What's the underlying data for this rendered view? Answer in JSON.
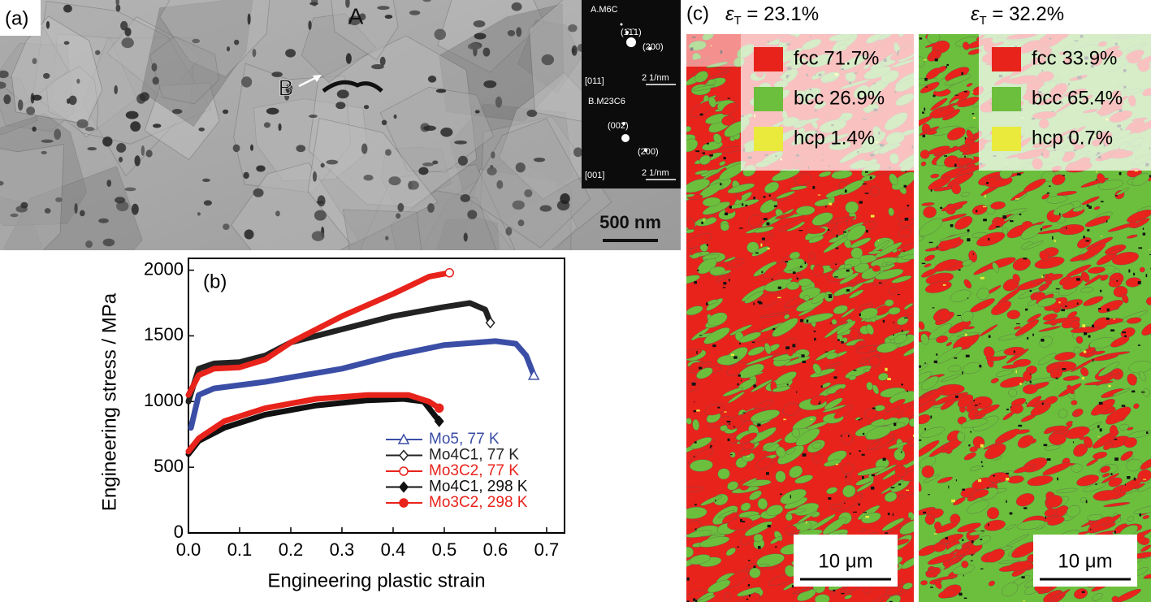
{
  "panel_a": {
    "label": "(a)",
    "feature_labels": [
      "A",
      "B"
    ],
    "scale_bar": "500 nm",
    "inset": [
      "A.M6C",
      "(1̄1̄1)",
      "(200)",
      "[011]",
      "2 1/nm",
      "B.M23C6",
      "(002)",
      "(2̄00)",
      "[001]",
      "2 1/nm"
    ]
  },
  "chart_data": {
    "type": "line",
    "panel_label": "(b)",
    "x_label": "Engineering plastic strain",
    "y_label": "Engineering stress / MPa",
    "xlim": [
      0,
      0.735
    ],
    "ylim": [
      0,
      2090
    ],
    "xticks": [
      {
        "value": 0,
        "label": "0.0"
      },
      0.1,
      0.2,
      0.3,
      0.4,
      0.5,
      0.6,
      0.7
    ],
    "yticks": [
      0,
      500,
      1000,
      1500,
      2000
    ],
    "series": [
      {
        "name": "Mo5, 77 K",
        "color": "#3b4ea6",
        "marker": "triangle-open",
        "x": [
          0.005,
          0.02,
          0.05,
          0.15,
          0.3,
          0.4,
          0.5,
          0.6,
          0.64,
          0.66,
          0.675
        ],
        "values": [
          800,
          1050,
          1100,
          1150,
          1250,
          1350,
          1430,
          1460,
          1440,
          1350,
          1200
        ]
      },
      {
        "name": "Mo4C1, 77 K",
        "color": "#222222",
        "marker": "diamond-open",
        "x": [
          0,
          0.02,
          0.05,
          0.1,
          0.15,
          0.2,
          0.3,
          0.4,
          0.5,
          0.55,
          0.58,
          0.59
        ],
        "values": [
          1000,
          1250,
          1290,
          1300,
          1350,
          1450,
          1550,
          1650,
          1720,
          1750,
          1700,
          1600
        ]
      },
      {
        "name": "Mo3C2, 77 K",
        "color": "#e8231c",
        "marker": "circle-open",
        "x": [
          0,
          0.02,
          0.05,
          0.1,
          0.15,
          0.2,
          0.3,
          0.4,
          0.47,
          0.51
        ],
        "values": [
          1050,
          1200,
          1250,
          1260,
          1320,
          1450,
          1650,
          1820,
          1950,
          1980
        ]
      },
      {
        "name": "Mo4C1, 298 K",
        "color": "#111111",
        "marker": "diamond",
        "x": [
          0,
          0.02,
          0.07,
          0.15,
          0.25,
          0.35,
          0.42,
          0.46,
          0.48,
          0.49
        ],
        "values": [
          600,
          700,
          800,
          900,
          970,
          1010,
          1020,
          1000,
          900,
          850
        ]
      },
      {
        "name": "Mo3C2, 298 K",
        "color": "#e8231c",
        "marker": "circle",
        "x": [
          0,
          0.02,
          0.07,
          0.15,
          0.25,
          0.35,
          0.43,
          0.47,
          0.49
        ],
        "values": [
          620,
          720,
          850,
          950,
          1020,
          1050,
          1050,
          1000,
          950
        ]
      }
    ]
  },
  "panel_c": {
    "label": "(c)",
    "phase_colors": [
      "#e8231c",
      "#6cbf3c",
      "#eaea3c"
    ],
    "maps": [
      {
        "strain": {
          "symbol": "ε",
          "subscript": "T",
          "text": " = 23.1%"
        },
        "legend": [
          "fcc 71.7%",
          "bcc 26.9%",
          "hcp 1.4%"
        ],
        "scale_bar": "10 μm"
      },
      {
        "strain": {
          "symbol": "ε",
          "subscript": "T",
          "text": " = 32.2%"
        },
        "legend": [
          "fcc 33.9%",
          "bcc 65.4%",
          "hcp 0.7%"
        ],
        "scale_bar": "10 μm"
      }
    ]
  }
}
